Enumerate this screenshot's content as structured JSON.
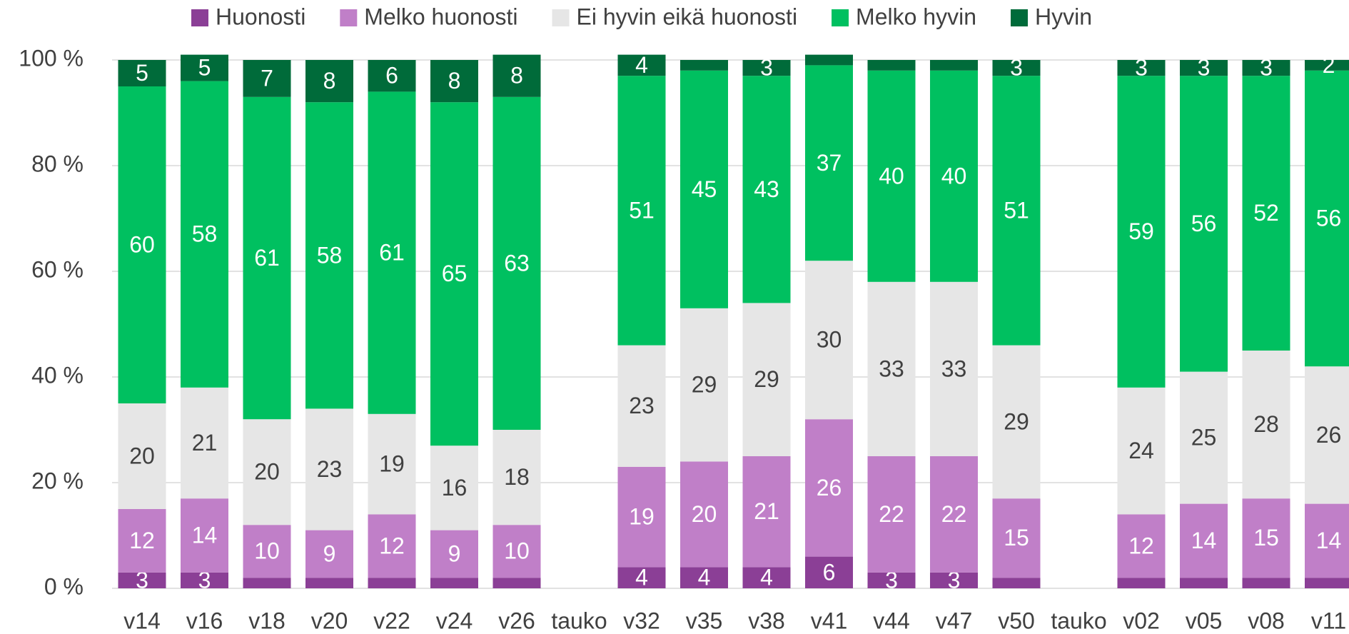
{
  "chart_data": {
    "type": "stacked-bar",
    "categories": [
      "v14",
      "v16",
      "v18",
      "v20",
      "v22",
      "v24",
      "v26",
      "tauko",
      "v32",
      "v35",
      "v38",
      "v41",
      "v44",
      "v47",
      "v50",
      "tauko",
      "v02",
      "v05",
      "v08",
      "v11"
    ],
    "series": [
      {
        "name": "Huonosti",
        "color": "#8b3f96",
        "label_color": "#ffffff",
        "values": [
          3,
          3,
          2,
          2,
          2,
          2,
          2,
          null,
          4,
          4,
          4,
          6,
          3,
          3,
          2,
          null,
          2,
          2,
          2,
          2
        ],
        "value_labels": [
          "3",
          "3",
          null,
          null,
          null,
          null,
          null,
          null,
          "4",
          "4",
          "4",
          "6",
          "3",
          "3",
          null,
          null,
          null,
          null,
          null,
          null
        ]
      },
      {
        "name": "Melko huonosti",
        "color": "#c07fc8",
        "label_color": "#ffffff",
        "values": [
          12,
          14,
          10,
          9,
          12,
          9,
          10,
          null,
          19,
          20,
          21,
          26,
          22,
          22,
          15,
          null,
          12,
          14,
          15,
          14
        ],
        "value_labels": [
          "12",
          "14",
          "10",
          "9",
          "12",
          "9",
          "10",
          null,
          "19",
          "20",
          "21",
          "26",
          "22",
          "22",
          "15",
          null,
          "12",
          "14",
          "15",
          "14"
        ]
      },
      {
        "name": "Ei hyvin eikä huonosti",
        "color": "#e6e6e6",
        "label_color": "#404040",
        "values": [
          20,
          21,
          20,
          23,
          19,
          16,
          18,
          null,
          23,
          29,
          29,
          30,
          33,
          33,
          29,
          null,
          24,
          25,
          28,
          26
        ],
        "value_labels": [
          "20",
          "21",
          "20",
          "23",
          "19",
          "16",
          "18",
          null,
          "23",
          "29",
          "29",
          "30",
          "33",
          "33",
          "29",
          null,
          "24",
          "25",
          "28",
          "26"
        ]
      },
      {
        "name": "Melko hyvin",
        "color": "#00c060",
        "label_color": "#ffffff",
        "values": [
          60,
          58,
          61,
          58,
          61,
          65,
          63,
          null,
          51,
          45,
          43,
          37,
          40,
          40,
          51,
          null,
          59,
          56,
          52,
          56
        ],
        "value_labels": [
          "60",
          "58",
          "61",
          "58",
          "61",
          "65",
          "63",
          null,
          "51",
          "45",
          "43",
          "37",
          "40",
          "40",
          "51",
          null,
          "59",
          "56",
          "52",
          "56"
        ]
      },
      {
        "name": "Hyvin",
        "color": "#006b3a",
        "label_color": "#ffffff",
        "values": [
          5,
          5,
          7,
          8,
          6,
          8,
          8,
          null,
          4,
          2,
          3,
          2,
          2,
          2,
          3,
          null,
          3,
          3,
          3,
          2
        ],
        "value_labels": [
          "5",
          "5",
          "7",
          "8",
          "6",
          "8",
          "8",
          null,
          "4",
          null,
          "3",
          null,
          null,
          null,
          "3",
          null,
          "3",
          "3",
          "3",
          "2"
        ]
      }
    ],
    "ylim": [
      0,
      100
    ],
    "yticks": [
      {
        "value": 0,
        "label": "0 %"
      },
      {
        "value": 20,
        "label": "20 %"
      },
      {
        "value": 40,
        "label": "40 %"
      },
      {
        "value": 60,
        "label": "60 %"
      },
      {
        "value": 80,
        "label": "80 %"
      },
      {
        "value": 100,
        "label": "100 %"
      }
    ],
    "grid": true,
    "legend": "top"
  }
}
